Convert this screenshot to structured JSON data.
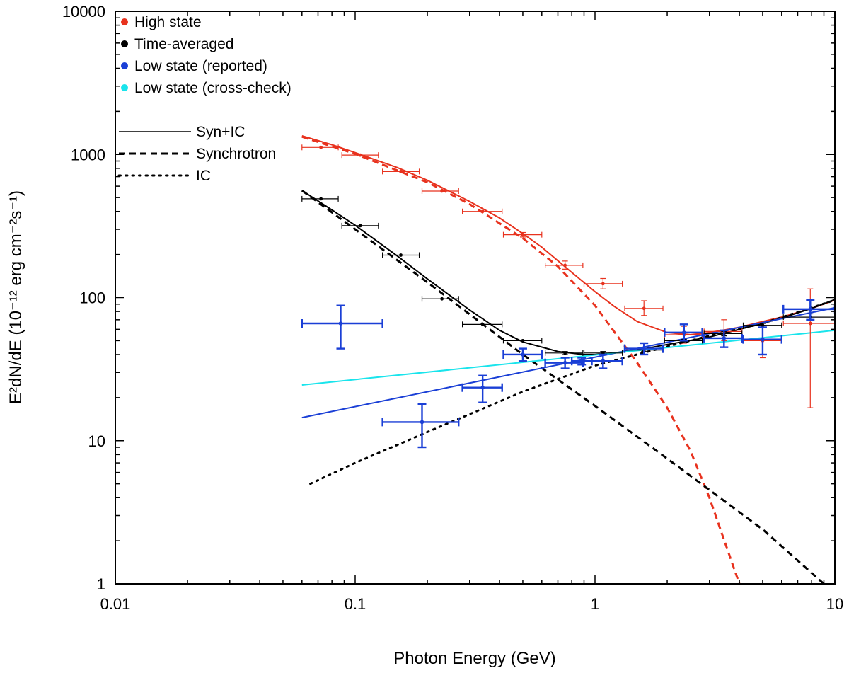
{
  "chart_data": {
    "type": "scatter",
    "title": "",
    "xlabel": "Photon Energy (GeV)",
    "ylabel": "E²dN/dE (10⁻¹² erg cm⁻²s⁻¹)",
    "xscale": "log",
    "yscale": "log",
    "xlim": [
      0.01,
      10
    ],
    "ylim": [
      1,
      10000
    ],
    "x_tick_labels": [
      "0.01",
      "0.1",
      "1",
      "10"
    ],
    "y_tick_labels": [
      "1",
      "10",
      "100",
      "1000",
      "10000"
    ],
    "legend_position": "top-left",
    "legend_points": [
      {
        "label": "High state",
        "color": "#e8321e"
      },
      {
        "label": "Time-averaged",
        "color": "#000000"
      },
      {
        "label": "Low state (reported)",
        "color": "#1a3fd6"
      },
      {
        "label": "Low state (cross-check)",
        "color": "#19e4ec"
      }
    ],
    "legend_lines": [
      {
        "label": "Syn+IC",
        "style": "solid"
      },
      {
        "label": "Synchrotron",
        "style": "dashed"
      },
      {
        "label": "IC",
        "style": "dotted"
      }
    ],
    "series": [
      {
        "name": "High state",
        "color": "#e8321e",
        "points": [
          {
            "x": 0.072,
            "y": 1120,
            "xlo": 0.06,
            "xhi": 0.085,
            "ylo": 1120,
            "yhi": 1120
          },
          {
            "x": 0.105,
            "y": 990,
            "xlo": 0.088,
            "xhi": 0.125,
            "ylo": 990,
            "yhi": 990
          },
          {
            "x": 0.155,
            "y": 760,
            "xlo": 0.13,
            "xhi": 0.185,
            "ylo": 760,
            "yhi": 760
          },
          {
            "x": 0.23,
            "y": 555,
            "xlo": 0.19,
            "xhi": 0.27,
            "ylo": 555,
            "yhi": 555
          },
          {
            "x": 0.34,
            "y": 400,
            "xlo": 0.28,
            "xhi": 0.41,
            "ylo": 400,
            "yhi": 400
          },
          {
            "x": 0.5,
            "y": 275,
            "xlo": 0.415,
            "xhi": 0.6,
            "ylo": 265,
            "yhi": 285
          },
          {
            "x": 0.75,
            "y": 168,
            "xlo": 0.62,
            "xhi": 0.89,
            "ylo": 158,
            "yhi": 180
          },
          {
            "x": 1.08,
            "y": 125,
            "xlo": 0.9,
            "xhi": 1.3,
            "ylo": 115,
            "yhi": 136
          },
          {
            "x": 1.6,
            "y": 84,
            "xlo": 1.33,
            "xhi": 1.92,
            "ylo": 75,
            "yhi": 95
          },
          {
            "x": 2.35,
            "y": 55,
            "xlo": 1.95,
            "xhi": 2.8,
            "ylo": 48,
            "yhi": 63
          },
          {
            "x": 3.45,
            "y": 58,
            "xlo": 2.85,
            "xhi": 4.1,
            "ylo": 50,
            "yhi": 70
          },
          {
            "x": 5.0,
            "y": 50,
            "xlo": 4.15,
            "xhi": 6.0,
            "ylo": 38,
            "yhi": 64
          },
          {
            "x": 7.9,
            "y": 66,
            "xlo": 6.1,
            "xhi": 10.0,
            "ylo": 17,
            "yhi": 115
          }
        ]
      },
      {
        "name": "Time-averaged",
        "color": "#000000",
        "points": [
          {
            "x": 0.072,
            "y": 490,
            "xlo": 0.06,
            "xhi": 0.085,
            "ylo": 490,
            "yhi": 490
          },
          {
            "x": 0.105,
            "y": 318,
            "xlo": 0.088,
            "xhi": 0.125,
            "ylo": 318,
            "yhi": 318
          },
          {
            "x": 0.155,
            "y": 198,
            "xlo": 0.13,
            "xhi": 0.185,
            "ylo": 198,
            "yhi": 198
          },
          {
            "x": 0.23,
            "y": 98,
            "xlo": 0.19,
            "xhi": 0.27,
            "ylo": 98,
            "yhi": 98
          },
          {
            "x": 0.34,
            "y": 65,
            "xlo": 0.28,
            "xhi": 0.41,
            "ylo": 65,
            "yhi": 65
          },
          {
            "x": 0.5,
            "y": 50,
            "xlo": 0.415,
            "xhi": 0.6,
            "ylo": 50,
            "yhi": 50
          },
          {
            "x": 0.75,
            "y": 41,
            "xlo": 0.62,
            "xhi": 0.89,
            "ylo": 40,
            "yhi": 42
          },
          {
            "x": 1.08,
            "y": 41,
            "xlo": 0.9,
            "xhi": 1.3,
            "ylo": 40,
            "yhi": 42
          },
          {
            "x": 1.6,
            "y": 43,
            "xlo": 1.33,
            "xhi": 1.92,
            "ylo": 42,
            "yhi": 44
          },
          {
            "x": 2.35,
            "y": 50,
            "xlo": 1.95,
            "xhi": 2.8,
            "ylo": 49,
            "yhi": 51
          },
          {
            "x": 3.45,
            "y": 56,
            "xlo": 2.85,
            "xhi": 4.1,
            "ylo": 54,
            "yhi": 58
          },
          {
            "x": 5.0,
            "y": 64,
            "xlo": 4.15,
            "xhi": 6.0,
            "ylo": 62,
            "yhi": 66
          },
          {
            "x": 7.9,
            "y": 73,
            "xlo": 6.1,
            "xhi": 10.0,
            "ylo": 69,
            "yhi": 77
          }
        ]
      },
      {
        "name": "Low state (reported)",
        "color": "#1a3fd6",
        "points": [
          {
            "x": 0.087,
            "y": 66,
            "xlo": 0.06,
            "xhi": 0.13,
            "ylo": 44,
            "yhi": 88
          },
          {
            "x": 0.19,
            "y": 13.5,
            "xlo": 0.13,
            "xhi": 0.27,
            "ylo": 9,
            "yhi": 18
          },
          {
            "x": 0.34,
            "y": 23.5,
            "xlo": 0.28,
            "xhi": 0.41,
            "ylo": 18.5,
            "yhi": 28.5
          },
          {
            "x": 0.5,
            "y": 40,
            "xlo": 0.415,
            "xhi": 0.6,
            "ylo": 36,
            "yhi": 44
          },
          {
            "x": 0.75,
            "y": 35,
            "xlo": 0.62,
            "xhi": 0.89,
            "ylo": 32,
            "yhi": 38
          },
          {
            "x": 0.88,
            "y": 36,
            "xlo": 0.8,
            "xhi": 0.97,
            "ylo": 34,
            "yhi": 38
          },
          {
            "x": 1.08,
            "y": 36,
            "xlo": 0.9,
            "xhi": 1.3,
            "ylo": 32,
            "yhi": 40
          },
          {
            "x": 1.6,
            "y": 44,
            "xlo": 1.33,
            "xhi": 1.92,
            "ylo": 40,
            "yhi": 48
          },
          {
            "x": 2.35,
            "y": 57,
            "xlo": 1.95,
            "xhi": 2.8,
            "ylo": 50,
            "yhi": 65
          },
          {
            "x": 3.45,
            "y": 52,
            "xlo": 2.85,
            "xhi": 4.1,
            "ylo": 45,
            "yhi": 59
          },
          {
            "x": 5.0,
            "y": 51,
            "xlo": 4.15,
            "xhi": 6.0,
            "ylo": 40,
            "yhi": 62
          },
          {
            "x": 7.9,
            "y": 83,
            "xlo": 6.1,
            "xhi": 10.0,
            "ylo": 70,
            "yhi": 96
          }
        ]
      }
    ],
    "models": [
      {
        "name": "High state Syn+IC",
        "color": "#e8321e",
        "style": "solid",
        "x": [
          0.06,
          0.08,
          0.1,
          0.15,
          0.2,
          0.3,
          0.4,
          0.5,
          0.6,
          0.8,
          1.0,
          1.2,
          1.5,
          2.0,
          2.5,
          3.0,
          4.0,
          5.0,
          6.0,
          8.0,
          10.0
        ],
        "y": [
          1350,
          1170,
          1030,
          810,
          660,
          470,
          360,
          280,
          225,
          150,
          110,
          87,
          68,
          57,
          55,
          57,
          62,
          68,
          73,
          84,
          96
        ]
      },
      {
        "name": "High state Synchrotron",
        "color": "#e8321e",
        "style": "dashed",
        "x": [
          0.06,
          0.1,
          0.2,
          0.3,
          0.5,
          0.7,
          1.0,
          1.2,
          1.5,
          2.0,
          2.5,
          3.0,
          3.5,
          4.0
        ],
        "y": [
          1330,
          1010,
          640,
          450,
          260,
          165,
          88,
          58,
          35,
          17,
          8.5,
          4.0,
          1.9,
          1.0
        ]
      },
      {
        "name": "Time-averaged Syn+IC",
        "color": "#000000",
        "style": "solid",
        "x": [
          0.06,
          0.08,
          0.1,
          0.15,
          0.2,
          0.3,
          0.4,
          0.5,
          0.7,
          0.9,
          1.0,
          1.2,
          1.5,
          2.0,
          3.0,
          4.0,
          5.0,
          6.0,
          8.0,
          10.0
        ],
        "y": [
          560,
          410,
          320,
          195,
          135,
          82,
          59,
          49,
          42,
          40,
          40,
          41,
          43,
          47,
          53,
          60,
          66,
          72,
          84,
          97
        ]
      },
      {
        "name": "Time-averaged Synchrotron",
        "color": "#000000",
        "style": "dashed",
        "x": [
          0.06,
          0.1,
          0.2,
          0.5,
          1.0,
          2.0,
          5.0,
          9.0
        ],
        "y": [
          560,
          300,
          128,
          40,
          17.5,
          7.5,
          2.4,
          1.0
        ]
      },
      {
        "name": "Time-averaged IC",
        "color": "#000000",
        "style": "dotted",
        "x": [
          0.065,
          0.1,
          0.2,
          0.5,
          1.0,
          2.0,
          3.0,
          5.0,
          10.0
        ],
        "y": [
          5.0,
          7.0,
          11.5,
          22.0,
          33.5,
          45.5,
          54.0,
          66.0,
          96.0
        ]
      },
      {
        "name": "Low state fit (reported)",
        "color": "#1a3fd6",
        "style": "solid",
        "x": [
          0.06,
          10.0
        ],
        "y": [
          14.5,
          85.0
        ]
      },
      {
        "name": "Low state fit (cross-check)",
        "color": "#19e4ec",
        "style": "solid",
        "x": [
          0.06,
          10.0
        ],
        "y": [
          24.5,
          59.0
        ]
      }
    ]
  }
}
